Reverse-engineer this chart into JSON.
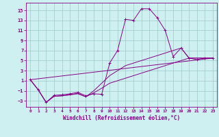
{
  "xlabel": "Windchill (Refroidissement éolien,°C)",
  "background_color": "#cef0f0",
  "grid_color": "#a0c8c8",
  "line_color": "#880088",
  "xlim": [
    -0.5,
    23.5
  ],
  "ylim": [
    -4.2,
    16.5
  ],
  "xticks": [
    0,
    1,
    2,
    3,
    4,
    5,
    6,
    7,
    8,
    9,
    10,
    11,
    12,
    13,
    14,
    15,
    16,
    17,
    18,
    19,
    20,
    21,
    22,
    23
  ],
  "yticks": [
    -3,
    -1,
    1,
    3,
    5,
    7,
    9,
    11,
    13,
    15
  ],
  "series0_x": [
    0,
    1,
    2,
    3,
    4,
    5,
    6,
    7,
    8,
    9,
    10,
    11,
    12,
    13,
    14,
    15,
    16,
    17,
    18,
    19,
    20,
    21,
    22,
    23
  ],
  "series0_y": [
    1.2,
    -0.8,
    -3.3,
    -1.9,
    -1.8,
    -1.6,
    -1.3,
    -2.0,
    -1.6,
    -1.7,
    4.5,
    7.0,
    13.2,
    13.0,
    15.3,
    15.3,
    13.5,
    11.0,
    5.8,
    7.5,
    5.5,
    5.2,
    5.5,
    5.5
  ],
  "series1_x": [
    0,
    1,
    2,
    3,
    4,
    5,
    6,
    7,
    8,
    9,
    10,
    11,
    12,
    13,
    14,
    15,
    16,
    17,
    18,
    19,
    20,
    21,
    22,
    23
  ],
  "series1_y": [
    1.2,
    -0.8,
    -3.3,
    -2.1,
    -2.0,
    -1.8,
    -1.5,
    -2.2,
    -1.4,
    -0.5,
    0.5,
    1.0,
    1.5,
    2.0,
    2.5,
    3.0,
    3.5,
    4.0,
    4.5,
    5.0,
    5.5,
    5.5,
    5.5,
    5.5
  ],
  "series2_x": [
    0,
    1,
    2,
    3,
    4,
    5,
    6,
    7,
    8,
    9,
    10,
    11,
    12,
    13,
    14,
    15,
    16,
    17,
    18,
    19,
    20,
    21,
    22,
    23
  ],
  "series2_y": [
    1.2,
    -0.8,
    -3.3,
    -2.1,
    -2.0,
    -1.8,
    -1.6,
    -2.2,
    -1.0,
    0.5,
    2.0,
    3.0,
    4.0,
    4.5,
    5.0,
    5.5,
    6.0,
    6.5,
    7.0,
    7.5,
    5.5,
    5.5,
    5.5,
    5.5
  ],
  "series3_x": [
    0,
    23
  ],
  "series3_y": [
    1.2,
    5.5
  ]
}
